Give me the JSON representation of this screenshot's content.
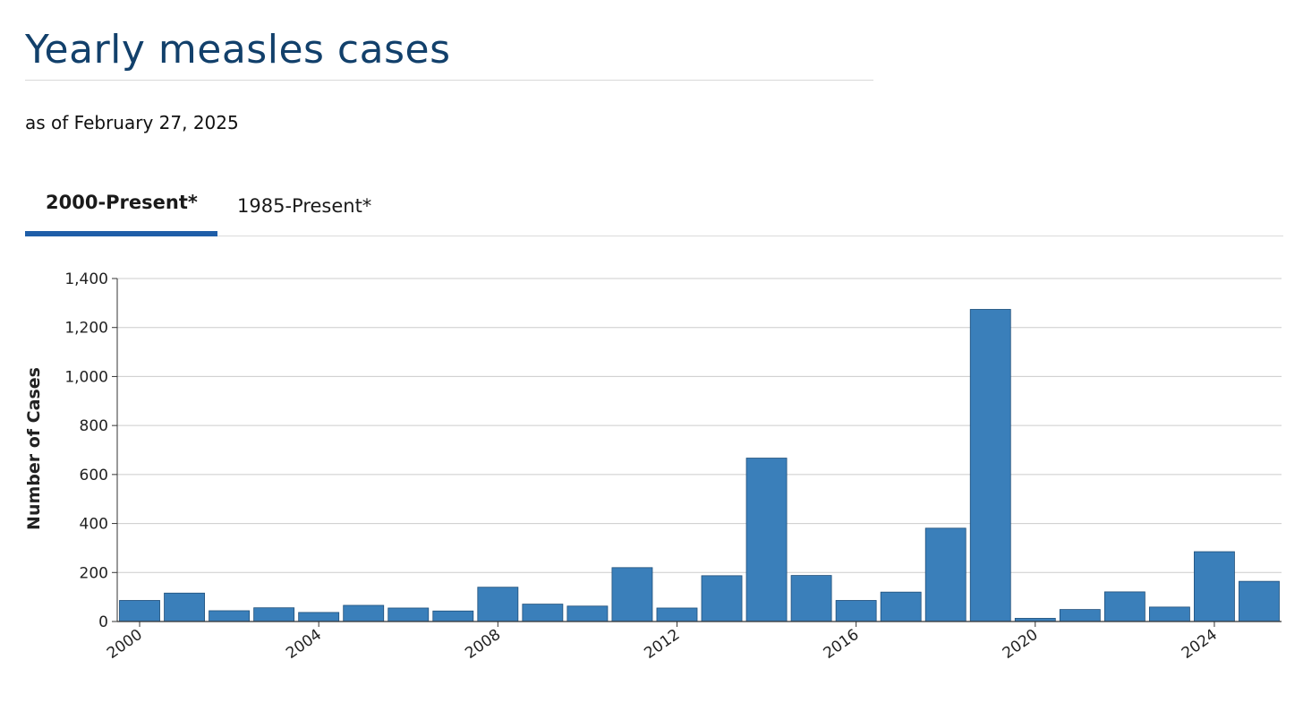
{
  "header": {
    "title": "Yearly measles cases",
    "subtitle": "as of February 27, 2025"
  },
  "tabs": [
    {
      "label": "2000-Present*",
      "active": true
    },
    {
      "label": "1985-Present*",
      "active": false
    }
  ],
  "colors": {
    "bar": "#3a7fba",
    "bar_stroke": "#1f4f7a",
    "accent": "#1f5ea8",
    "grid": "#cccccc",
    "axis": "#333333"
  },
  "chart_data": {
    "type": "bar",
    "title": "",
    "xlabel": "",
    "ylabel": "Number of Cases",
    "ylim": [
      0,
      1400
    ],
    "yticks": [
      0,
      200,
      400,
      600,
      800,
      1000,
      1200,
      1400
    ],
    "ytick_labels": [
      "0",
      "200",
      "400",
      "600",
      "800",
      "1,000",
      "1,200",
      "1,400"
    ],
    "xtick_labels": [
      "2000",
      "2004",
      "2008",
      "2012",
      "2016",
      "2020",
      "2024"
    ],
    "grid": true,
    "categories": [
      "2000",
      "2001",
      "2002",
      "2003",
      "2004",
      "2005",
      "2006",
      "2007",
      "2008",
      "2009",
      "2010",
      "2011",
      "2012",
      "2013",
      "2014",
      "2015",
      "2016",
      "2017",
      "2018",
      "2019",
      "2020",
      "2021",
      "2022",
      "2023",
      "2024",
      "2025"
    ],
    "values": [
      86,
      116,
      44,
      56,
      37,
      66,
      55,
      43,
      140,
      71,
      63,
      220,
      55,
      187,
      667,
      188,
      86,
      120,
      381,
      1274,
      13,
      49,
      121,
      59,
      285,
      164
    ]
  }
}
